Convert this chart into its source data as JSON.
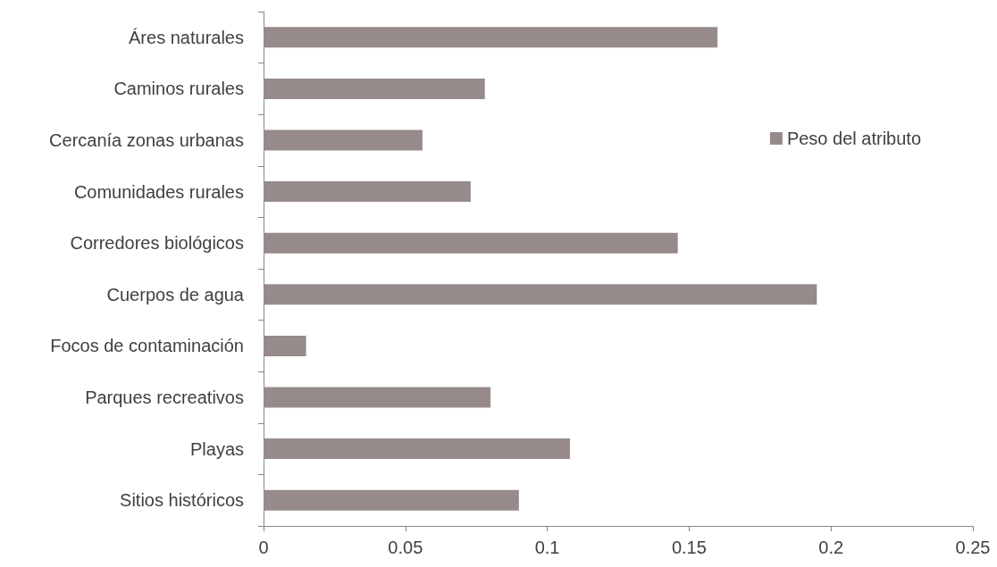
{
  "chart_data": {
    "type": "bar",
    "orientation": "horizontal",
    "categories": [
      "Áres naturales",
      "Caminos rurales",
      "Cercanía zonas urbanas",
      "Comunidades rurales",
      "Corredores biológicos",
      "Cuerpos de agua",
      "Focos de contaminación",
      "Parques recreativos",
      "Playas",
      "Sitios históricos"
    ],
    "series": [
      {
        "name": "Peso del atributo",
        "color": "#968b8a",
        "values": [
          0.16,
          0.078,
          0.056,
          0.073,
          0.146,
          0.195,
          0.015,
          0.08,
          0.108,
          0.09
        ]
      }
    ],
    "xlim": [
      0,
      0.25
    ],
    "xticks": [
      0,
      0.05,
      0.1,
      0.15,
      0.2,
      0.25
    ],
    "grid": false,
    "legend": "right"
  }
}
